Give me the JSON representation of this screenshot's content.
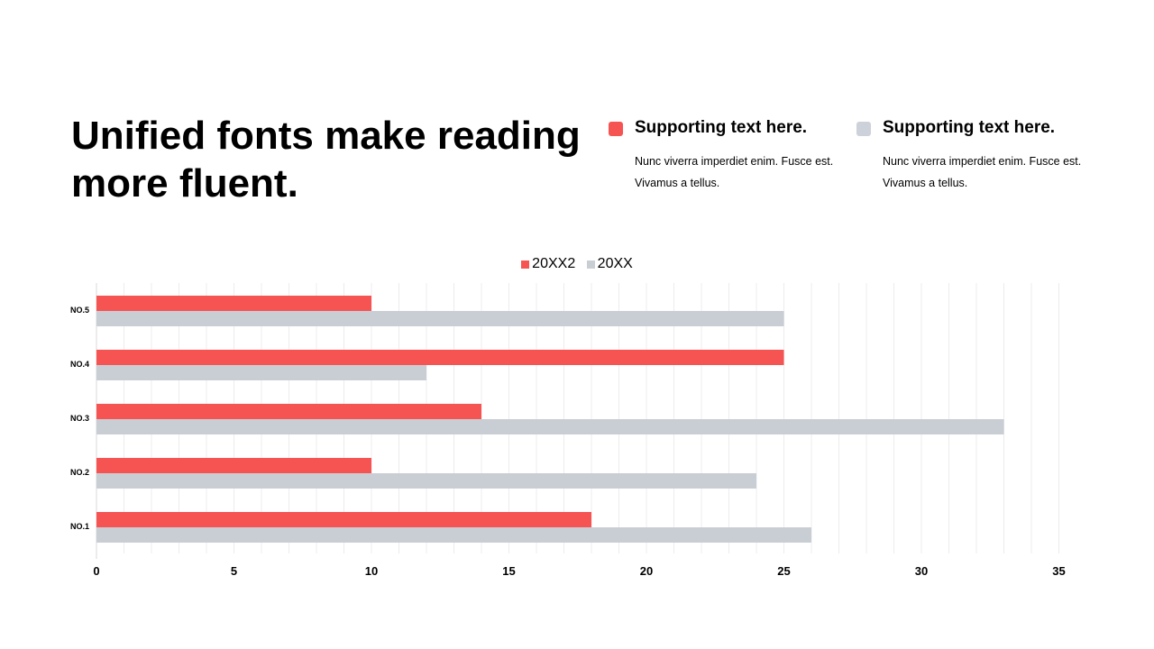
{
  "title": "Unified fonts make reading more fluent.",
  "supports": [
    {
      "heading": "Supporting text here.",
      "body": "Nunc viverra imperdiet enim. Fusce est. Vivamus  a tellus.",
      "color": "#f65353"
    },
    {
      "heading": "Supporting text here.",
      "body": "Nunc viverra imperdiet enim. Fusce est. Vivamus  a tellus.",
      "color": "#cdd1d9"
    }
  ],
  "chart_data": {
    "type": "bar",
    "orientation": "horizontal",
    "categories": [
      "NO.1",
      "NO.2",
      "NO.3",
      "NO.4",
      "NO.5"
    ],
    "series": [
      {
        "name": "20XX2",
        "values": [
          18,
          10,
          14,
          25,
          10
        ],
        "color": "#f65353"
      },
      {
        "name": "20XX",
        "values": [
          26,
          24,
          33,
          12,
          25
        ],
        "color": "#c9ced5"
      }
    ],
    "x_ticks": [
      0,
      5,
      10,
      15,
      20,
      25,
      30,
      35
    ],
    "xlim": [
      0,
      35
    ],
    "grid": true,
    "legend": "top-center"
  }
}
